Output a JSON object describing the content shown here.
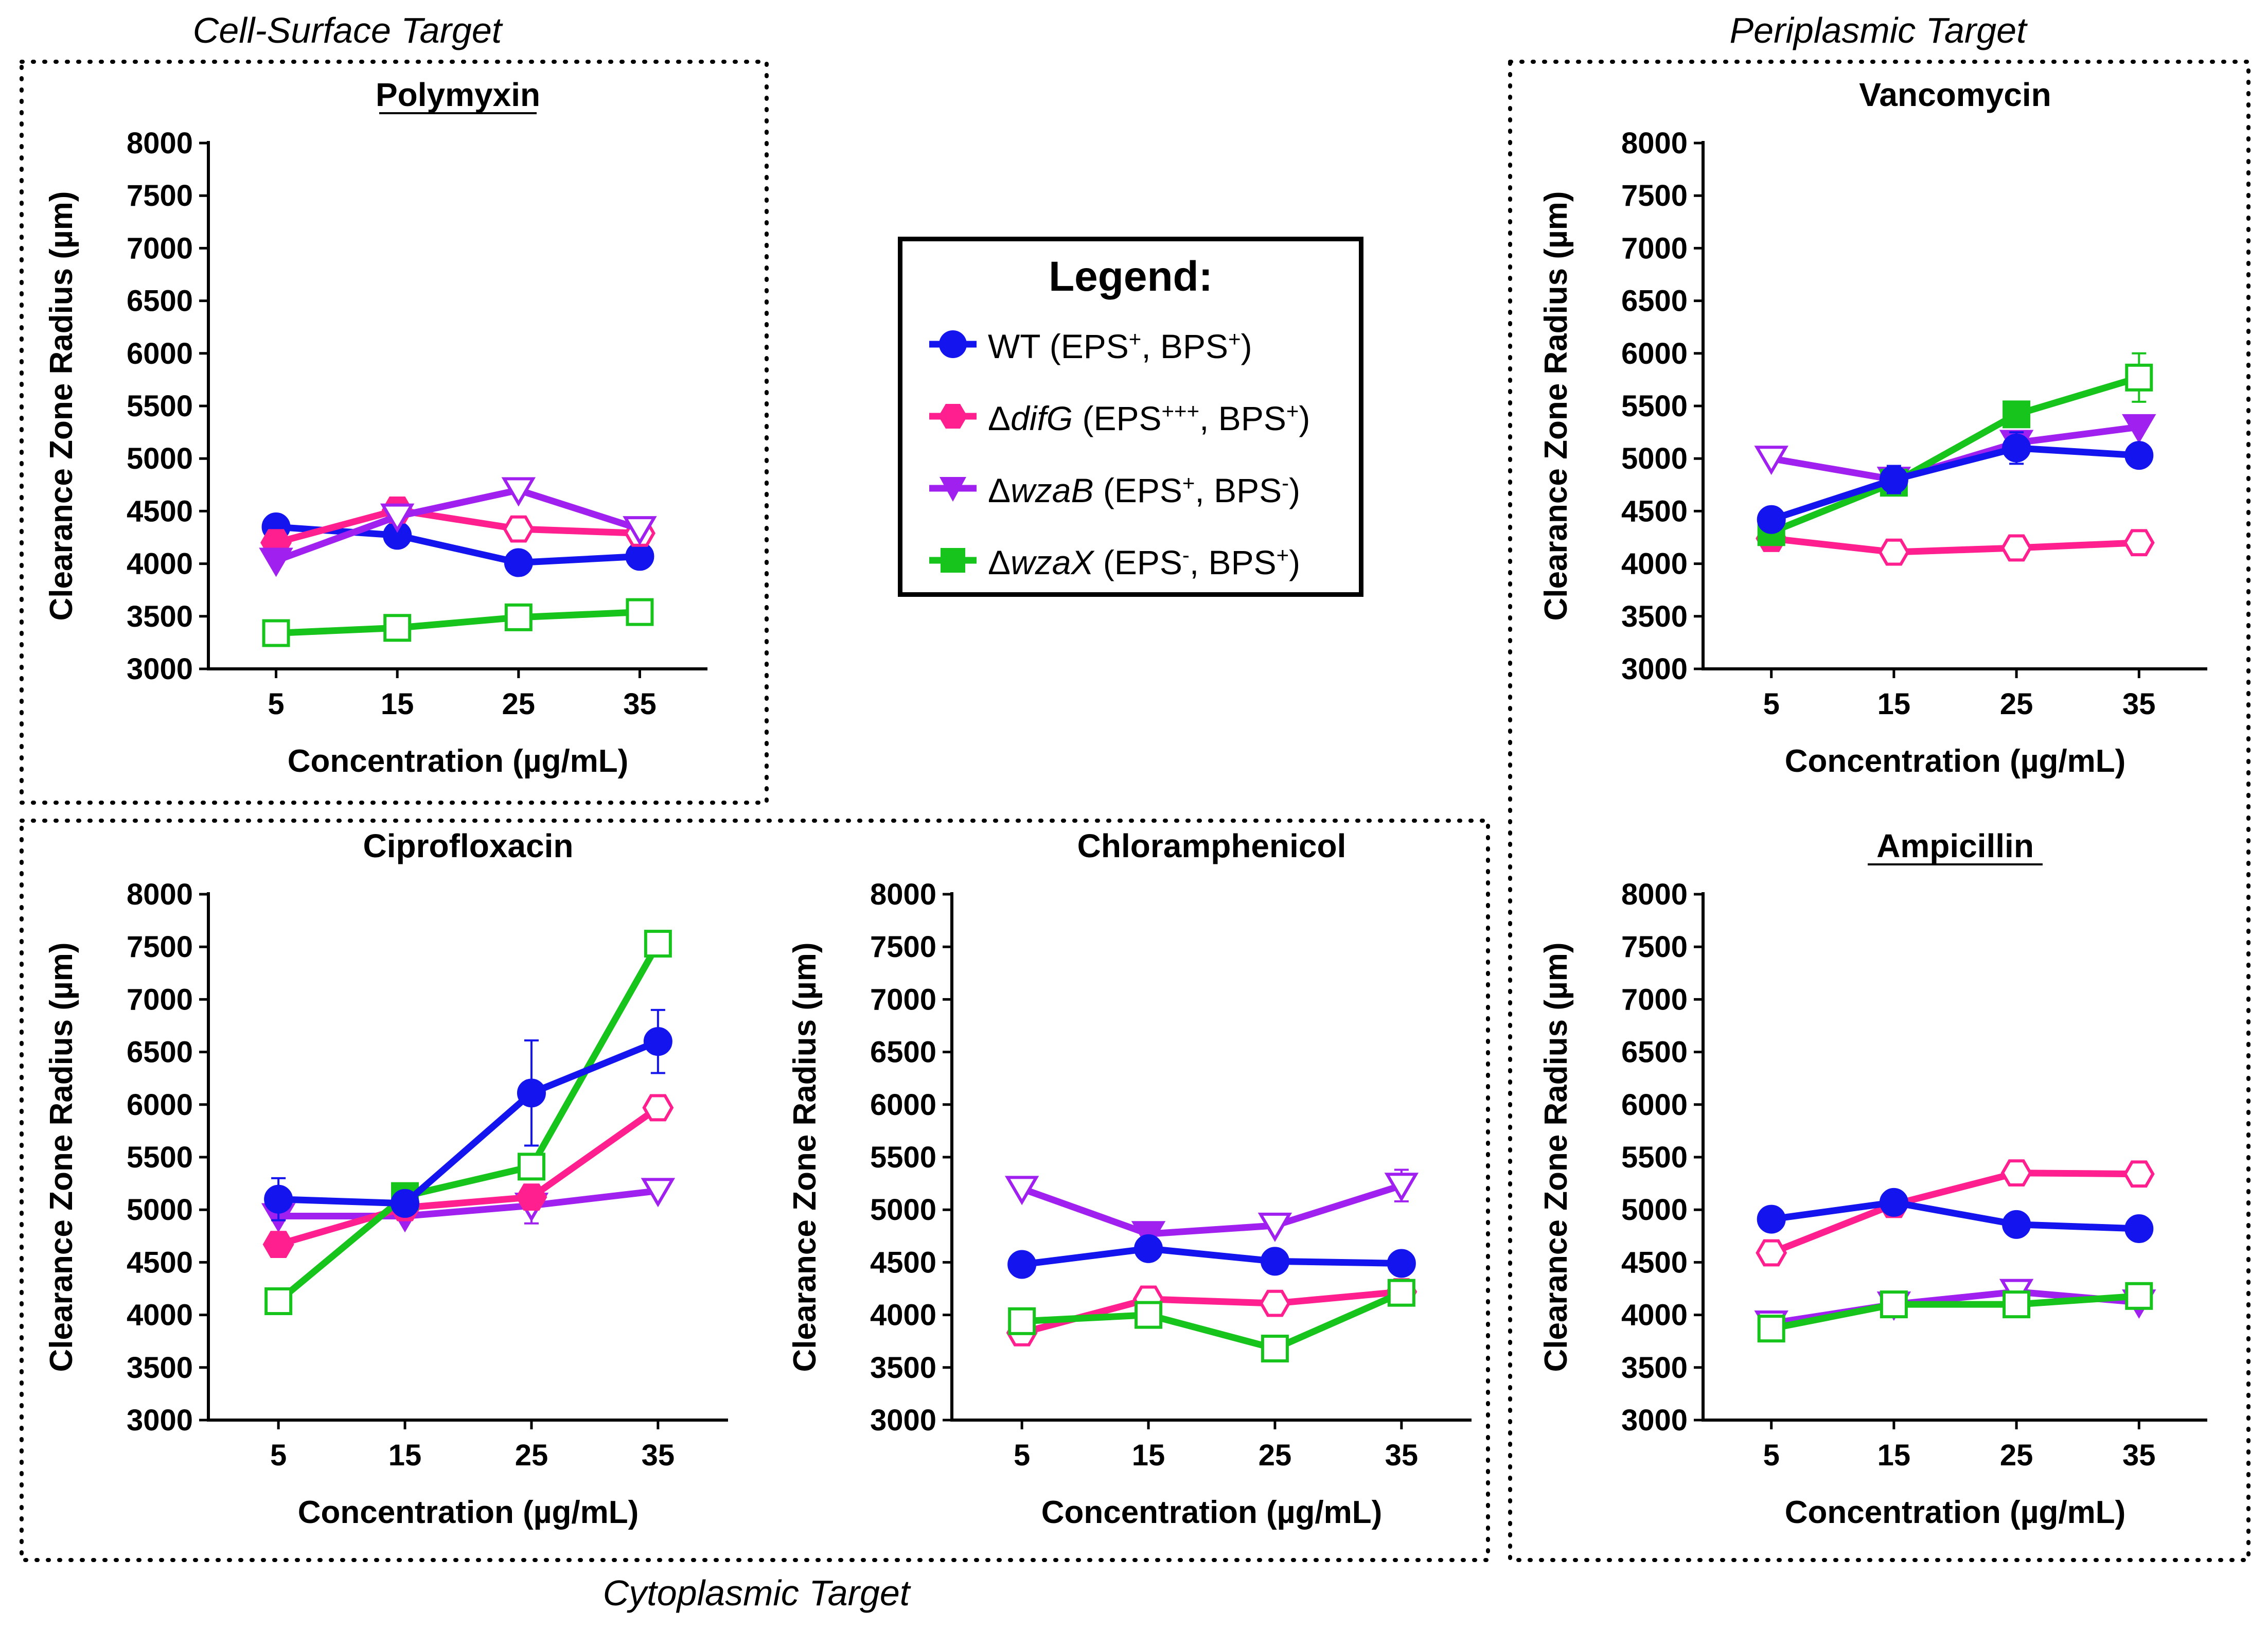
{
  "figure": {
    "sections": {
      "cell_surface": "Cell-Surface Target",
      "periplasmic": "Periplasmic Target",
      "cytoplasmic": "Cytoplasmic Target"
    }
  },
  "legend": {
    "title": "Legend:",
    "items": [
      {
        "key": "wt",
        "prefix": "",
        "gene": "",
        "text": "WT (EPS",
        "sup1": "+",
        "mid": ", BPS",
        "sup2": "+",
        "end": ")",
        "color": "#1414ee"
      },
      {
        "key": "difg",
        "prefix": "Δ",
        "gene": "difG",
        "text": " (EPS",
        "sup1": "+++",
        "mid": ", BPS",
        "sup2": "+",
        "end": ")",
        "color": "#ff1f8f"
      },
      {
        "key": "wzab",
        "prefix": "Δ",
        "gene": "wzaB",
        "text": " (EPS",
        "sup1": "+",
        "mid": ", BPS",
        "sup2": "-",
        "end": ")",
        "color": "#a020f0"
      },
      {
        "key": "wzax",
        "prefix": "Δ",
        "gene": "wzaX",
        "text": " (EPS",
        "sup1": "-",
        "mid": ", BPS",
        "sup2": "+",
        "end": ")",
        "color": "#17c41c"
      }
    ]
  },
  "chart_data": [
    {
      "type": "line",
      "title": "Polymyxin",
      "underline": true,
      "xlabel": "Concentration (µg/mL)",
      "ylabel": "Clearance Zone Radius (µm)",
      "categories": [
        "5",
        "15",
        "25",
        "35"
      ],
      "ylim": [
        3000,
        8000
      ],
      "yticks": [
        3000,
        3500,
        4000,
        4500,
        5000,
        5500,
        6000,
        6500,
        7000,
        7500,
        8000
      ],
      "series": [
        {
          "name": "WT",
          "key": "wt",
          "values": [
            4350,
            4270,
            4010,
            4070
          ],
          "filled": [
            true,
            true,
            true,
            true
          ]
        },
        {
          "name": "difG",
          "key": "difg",
          "values": [
            4200,
            4510,
            4330,
            4290
          ],
          "filled": [
            true,
            true,
            false,
            false
          ]
        },
        {
          "name": "wzaB",
          "key": "wzab",
          "values": [
            4030,
            4450,
            4700,
            4330
          ],
          "filled": [
            true,
            false,
            false,
            false
          ]
        },
        {
          "name": "wzaX",
          "key": "wzax",
          "values": [
            3340,
            3390,
            3490,
            3540
          ],
          "filled": [
            false,
            false,
            false,
            false
          ]
        }
      ]
    },
    {
      "type": "line",
      "title": "Vancomycin",
      "underline": false,
      "xlabel": "Concentration (µg/mL)",
      "ylabel": "Clearance Zone Radius (µm)",
      "categories": [
        "5",
        "15",
        "25",
        "35"
      ],
      "ylim": [
        3000,
        8000
      ],
      "yticks": [
        3000,
        3500,
        4000,
        4500,
        5000,
        5500,
        6000,
        6500,
        7000,
        7500,
        8000
      ],
      "series": [
        {
          "name": "difG",
          "key": "difg",
          "values": [
            4240,
            4110,
            4150,
            4200
          ],
          "filled": [
            true,
            false,
            false,
            false
          ]
        },
        {
          "name": "wzaB",
          "key": "wzab",
          "values": [
            5000,
            4800,
            5150,
            5300
          ],
          "filled": [
            false,
            false,
            true,
            true
          ]
        },
        {
          "name": "wzaX",
          "key": "wzax",
          "values": [
            4300,
            4770,
            5420,
            5770
          ],
          "filled": [
            true,
            true,
            true,
            false
          ],
          "errors": [
            0,
            0,
            0,
            230
          ]
        },
        {
          "name": "WT",
          "key": "wt",
          "values": [
            4420,
            4800,
            5100,
            5030
          ],
          "filled": [
            true,
            true,
            true,
            true
          ],
          "errors": [
            0,
            130,
            150,
            0
          ]
        }
      ]
    },
    {
      "type": "line",
      "title": "Ciprofloxacin",
      "underline": false,
      "xlabel": "Concentration (µg/mL)",
      "ylabel": "Clearance Zone Radius (µm)",
      "categories": [
        "5",
        "15",
        "25",
        "35"
      ],
      "ylim": [
        3000,
        8000
      ],
      "yticks": [
        3000,
        3500,
        4000,
        4500,
        5000,
        5500,
        6000,
        6500,
        7000,
        7500,
        8000
      ],
      "series": [
        {
          "name": "wzaB",
          "key": "wzab",
          "values": [
            4940,
            4940,
            5040,
            5180
          ],
          "filled": [
            true,
            true,
            false,
            false
          ],
          "errors": [
            0,
            0,
            170,
            0
          ]
        },
        {
          "name": "difG",
          "key": "difg",
          "values": [
            4670,
            5020,
            5120,
            5970
          ],
          "filled": [
            true,
            true,
            true,
            false
          ]
        },
        {
          "name": "wzaX",
          "key": "wzax",
          "values": [
            4130,
            5130,
            5410,
            7530
          ],
          "filled": [
            false,
            true,
            false,
            false
          ]
        },
        {
          "name": "WT",
          "key": "wt",
          "values": [
            5100,
            5060,
            6110,
            6600
          ],
          "filled": [
            true,
            true,
            true,
            true
          ],
          "errors": [
            200,
            0,
            500,
            300
          ]
        }
      ]
    },
    {
      "type": "line",
      "title": "Chloramphenicol",
      "underline": false,
      "xlabel": "Concentration (µg/mL)",
      "ylabel": "Clearance Zone Radius (µm)",
      "categories": [
        "5",
        "15",
        "25",
        "35"
      ],
      "ylim": [
        3000,
        8000
      ],
      "yticks": [
        3000,
        3500,
        4000,
        4500,
        5000,
        5500,
        6000,
        6500,
        7000,
        7500,
        8000
      ],
      "series": [
        {
          "name": "wzaB",
          "key": "wzab",
          "values": [
            5200,
            4770,
            4850,
            5230
          ],
          "filled": [
            false,
            true,
            false,
            false
          ],
          "errors": [
            0,
            0,
            0,
            150
          ]
        },
        {
          "name": "WT",
          "key": "wt",
          "values": [
            4480,
            4630,
            4510,
            4490
          ],
          "filled": [
            true,
            true,
            true,
            true
          ]
        },
        {
          "name": "difG",
          "key": "difg",
          "values": [
            3830,
            4150,
            4110,
            4220
          ],
          "filled": [
            false,
            false,
            false,
            false
          ]
        },
        {
          "name": "wzaX",
          "key": "wzax",
          "values": [
            3940,
            4000,
            3680,
            4210
          ],
          "filled": [
            false,
            false,
            false,
            false
          ]
        }
      ]
    },
    {
      "type": "line",
      "title": "Ampicillin",
      "underline": true,
      "xlabel": "Concentration (µg/mL)",
      "ylabel": "Clearance Zone Radius (µm)",
      "categories": [
        "5",
        "15",
        "25",
        "35"
      ],
      "ylim": [
        3000,
        8000
      ],
      "yticks": [
        3000,
        3500,
        4000,
        4500,
        5000,
        5500,
        6000,
        6500,
        7000,
        7500,
        8000
      ],
      "series": [
        {
          "name": "wzaB",
          "key": "wzab",
          "values": [
            3920,
            4100,
            4220,
            4120
          ],
          "filled": [
            false,
            false,
            false,
            true
          ]
        },
        {
          "name": "wzaX",
          "key": "wzax",
          "values": [
            3870,
            4100,
            4100,
            4180
          ],
          "filled": [
            false,
            false,
            false,
            false
          ]
        },
        {
          "name": "difG",
          "key": "difg",
          "values": [
            4590,
            5050,
            5350,
            5340
          ],
          "filled": [
            false,
            true,
            false,
            false
          ],
          "errors": [
            0,
            80,
            0,
            0
          ]
        },
        {
          "name": "WT",
          "key": "wt",
          "values": [
            4910,
            5070,
            4860,
            4820
          ],
          "filled": [
            true,
            true,
            true,
            true
          ]
        }
      ]
    }
  ]
}
